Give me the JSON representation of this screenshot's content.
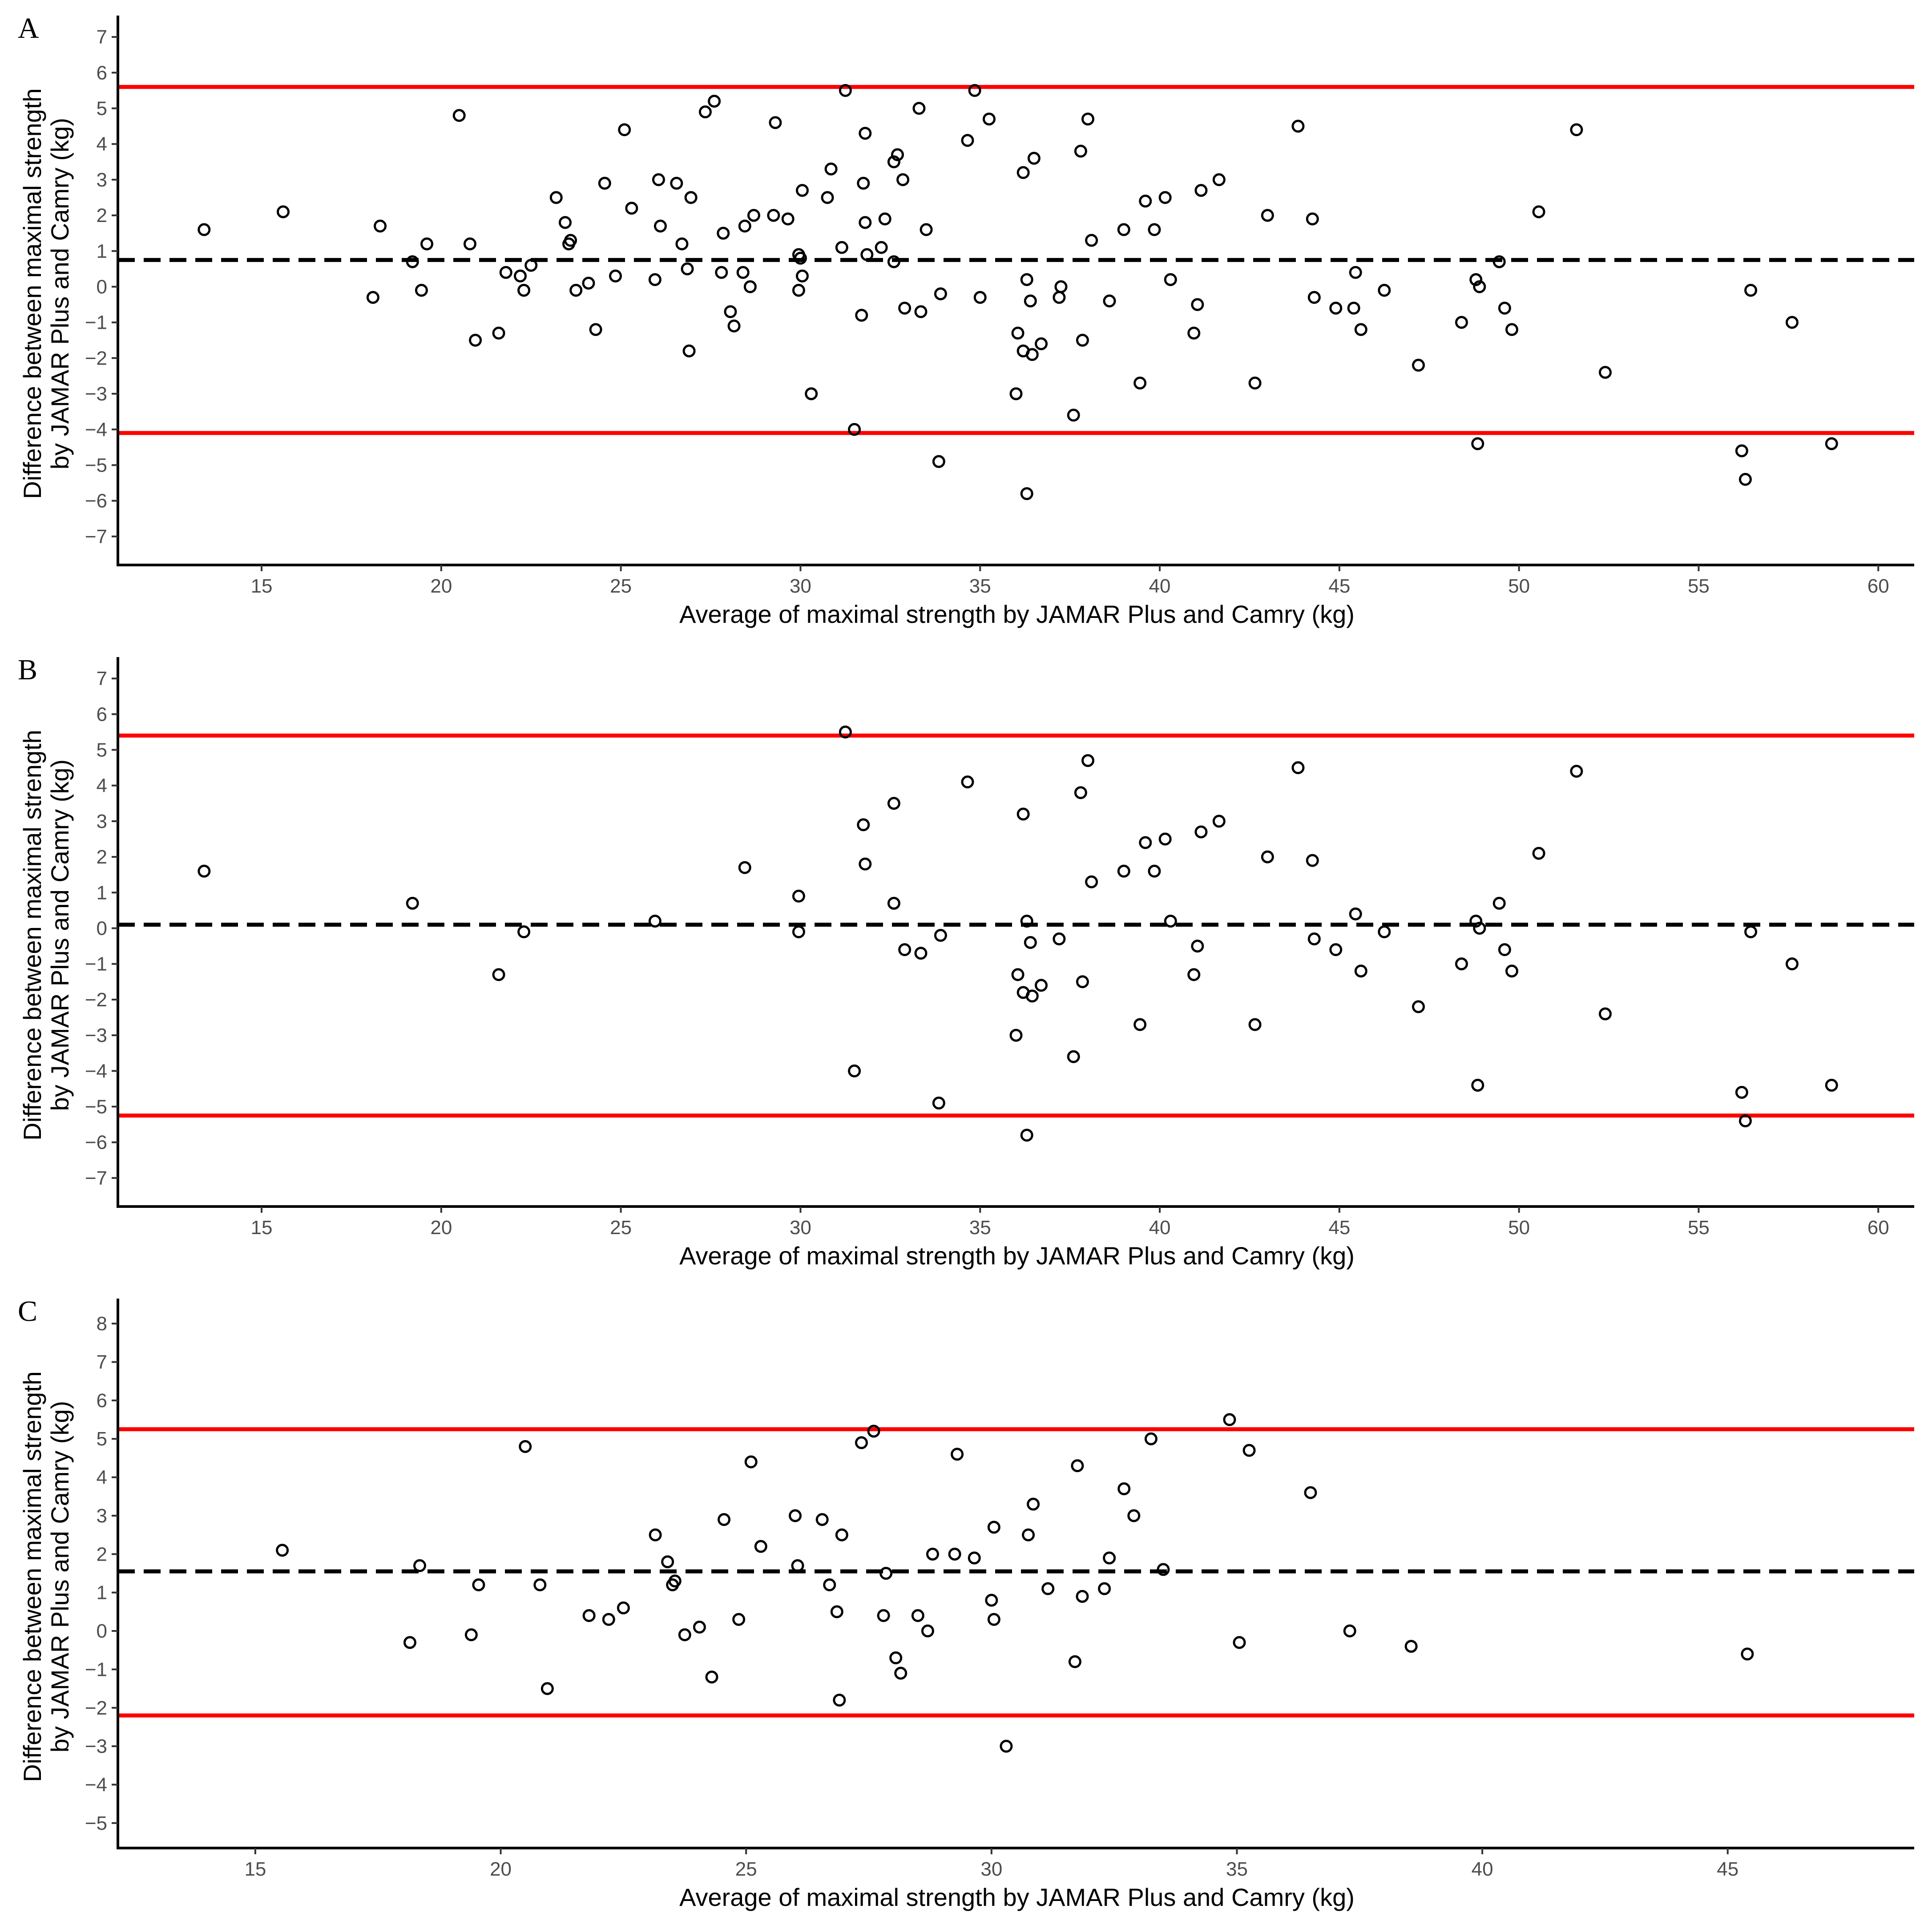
{
  "figure": {
    "colors": {
      "limit_line": "#ff0000",
      "mean_line": "#000000",
      "point_stroke": "#000000",
      "axis": "#000000",
      "tick_label": "#4d4d4d"
    }
  },
  "chart_data": [
    {
      "type": "scatter",
      "panel_label": "A",
      "title": "",
      "xlabel": "Average of maximal strength by JAMAR Plus and Camry (kg)",
      "ylabel_line1": "Difference between maximal strength",
      "ylabel_line2": "by JAMAR Plus and Camry (kg)",
      "xlim": [
        11,
        61
      ],
      "ylim": [
        -7.8,
        7.6
      ],
      "xticks": [
        15,
        20,
        25,
        30,
        35,
        40,
        45,
        50,
        55,
        60
      ],
      "yticks": [
        -7,
        -6,
        -5,
        -4,
        -3,
        -2,
        -1,
        0,
        1,
        2,
        3,
        4,
        5,
        6,
        7
      ],
      "grid": false,
      "legend": "none",
      "reference_lines": {
        "mean": 0.75,
        "upper_loa": 5.6,
        "lower_loa": -4.1
      },
      "points": [
        [
          13.4,
          1.6
        ],
        [
          15.6,
          2.1
        ],
        [
          18.1,
          -0.3
        ],
        [
          18.3,
          1.7
        ],
        [
          19.2,
          0.7
        ],
        [
          19.45,
          -0.1
        ],
        [
          19.6,
          1.2
        ],
        [
          20.5,
          4.8
        ],
        [
          20.8,
          1.2
        ],
        [
          20.95,
          -1.5
        ],
        [
          21.6,
          -1.3
        ],
        [
          21.8,
          0.4
        ],
        [
          22.2,
          0.3
        ],
        [
          22.3,
          -0.1
        ],
        [
          22.5,
          0.6
        ],
        [
          23.2,
          2.5
        ],
        [
          23.45,
          1.8
        ],
        [
          23.55,
          1.2
        ],
        [
          23.6,
          1.3
        ],
        [
          23.75,
          -0.1
        ],
        [
          24.1,
          0.1
        ],
        [
          24.3,
          -1.2
        ],
        [
          24.55,
          2.9
        ],
        [
          24.85,
          0.3
        ],
        [
          25.1,
          4.4
        ],
        [
          25.3,
          2.2
        ],
        [
          25.95,
          0.2
        ],
        [
          26.05,
          3.0
        ],
        [
          26.1,
          1.7
        ],
        [
          26.55,
          2.9
        ],
        [
          26.7,
          1.2
        ],
        [
          26.85,
          0.5
        ],
        [
          26.9,
          -1.8
        ],
        [
          26.95,
          2.5
        ],
        [
          27.35,
          4.9
        ],
        [
          27.6,
          5.2
        ],
        [
          27.8,
          0.4
        ],
        [
          27.85,
          1.5
        ],
        [
          28.05,
          -0.7
        ],
        [
          28.15,
          -1.1
        ],
        [
          28.4,
          0.4
        ],
        [
          28.45,
          1.7
        ],
        [
          28.6,
          0.0
        ],
        [
          28.7,
          2.0
        ],
        [
          29.25,
          2.0
        ],
        [
          29.3,
          4.6
        ],
        [
          29.65,
          1.9
        ],
        [
          29.95,
          0.9
        ],
        [
          29.95,
          -0.1
        ],
        [
          30.0,
          0.8
        ],
        [
          30.05,
          2.7
        ],
        [
          30.05,
          0.3
        ],
        [
          30.3,
          -3.0
        ],
        [
          30.75,
          2.5
        ],
        [
          30.85,
          3.3
        ],
        [
          31.15,
          1.1
        ],
        [
          31.25,
          5.5
        ],
        [
          31.5,
          -4.0
        ],
        [
          31.7,
          -0.8
        ],
        [
          31.75,
          2.9
        ],
        [
          31.8,
          4.3
        ],
        [
          31.8,
          1.8
        ],
        [
          31.85,
          0.9
        ],
        [
          32.25,
          1.1
        ],
        [
          32.35,
          1.9
        ],
        [
          32.6,
          0.7
        ],
        [
          32.6,
          3.5
        ],
        [
          32.7,
          3.7
        ],
        [
          32.85,
          3.0
        ],
        [
          32.9,
          -0.6
        ],
        [
          33.3,
          5.0
        ],
        [
          33.35,
          -0.7
        ],
        [
          33.5,
          1.6
        ],
        [
          33.85,
          -4.9
        ],
        [
          33.9,
          -0.2
        ],
        [
          34.65,
          4.1
        ],
        [
          34.85,
          5.5
        ],
        [
          35.0,
          -0.3
        ],
        [
          35.25,
          4.7
        ],
        [
          36.0,
          -3.0
        ],
        [
          36.05,
          -1.3
        ],
        [
          36.2,
          3.2
        ],
        [
          36.2,
          -1.8
        ],
        [
          36.3,
          -5.8
        ],
        [
          36.3,
          0.2
        ],
        [
          36.4,
          -0.4
        ],
        [
          36.45,
          -1.9
        ],
        [
          36.5,
          3.6
        ],
        [
          36.7,
          -1.6
        ],
        [
          37.2,
          -0.3
        ],
        [
          37.25,
          0.0
        ],
        [
          37.6,
          -3.6
        ],
        [
          37.8,
          3.8
        ],
        [
          37.85,
          -1.5
        ],
        [
          38.0,
          4.7
        ],
        [
          38.1,
          1.3
        ],
        [
          38.6,
          -0.4
        ],
        [
          39.0,
          1.6
        ],
        [
          39.45,
          -2.7
        ],
        [
          39.6,
          2.4
        ],
        [
          39.85,
          1.6
        ],
        [
          40.15,
          2.5
        ],
        [
          40.3,
          0.2
        ],
        [
          40.95,
          -1.3
        ],
        [
          41.05,
          -0.5
        ],
        [
          41.15,
          2.7
        ],
        [
          41.65,
          3.0
        ],
        [
          42.65,
          -2.7
        ],
        [
          43.0,
          2.0
        ],
        [
          43.85,
          4.5
        ],
        [
          44.25,
          1.9
        ],
        [
          44.3,
          -0.3
        ],
        [
          44.9,
          -0.6
        ],
        [
          45.4,
          -0.6
        ],
        [
          45.45,
          0.4
        ],
        [
          45.6,
          -1.2
        ],
        [
          46.25,
          -0.1
        ],
        [
          47.2,
          -2.2
        ],
        [
          48.4,
          -1.0
        ],
        [
          48.8,
          0.2
        ],
        [
          48.85,
          -4.4
        ],
        [
          48.9,
          0.0
        ],
        [
          49.45,
          0.7
        ],
        [
          49.6,
          -0.6
        ],
        [
          49.8,
          -1.2
        ],
        [
          50.55,
          2.1
        ],
        [
          51.6,
          4.4
        ],
        [
          52.4,
          -2.4
        ],
        [
          56.2,
          -4.6
        ],
        [
          56.3,
          -5.4
        ],
        [
          56.45,
          -0.1
        ],
        [
          57.6,
          -1.0
        ],
        [
          58.7,
          -4.4
        ]
      ]
    },
    {
      "type": "scatter",
      "panel_label": "B",
      "title": "",
      "xlabel": "Average of maximal strength by JAMAR Plus and Camry (kg)",
      "ylabel_line1": "Difference between maximal strength",
      "ylabel_line2": "by JAMAR Plus and Camry (kg)",
      "xlim": [
        11,
        61
      ],
      "ylim": [
        -7.8,
        7.6
      ],
      "xticks": [
        15,
        20,
        25,
        30,
        35,
        40,
        45,
        50,
        55,
        60
      ],
      "yticks": [
        -7,
        -6,
        -5,
        -4,
        -3,
        -2,
        -1,
        0,
        1,
        2,
        3,
        4,
        5,
        6,
        7
      ],
      "grid": false,
      "legend": "none",
      "reference_lines": {
        "mean": 0.1,
        "upper_loa": 5.4,
        "lower_loa": -5.25
      },
      "points": [
        [
          13.4,
          1.6
        ],
        [
          19.2,
          0.7
        ],
        [
          21.6,
          -1.3
        ],
        [
          22.3,
          -0.1
        ],
        [
          25.95,
          0.2
        ],
        [
          28.45,
          1.7
        ],
        [
          29.95,
          0.9
        ],
        [
          29.95,
          -0.1
        ],
        [
          31.25,
          5.5
        ],
        [
          31.5,
          -4.0
        ],
        [
          31.75,
          2.9
        ],
        [
          31.8,
          1.8
        ],
        [
          32.6,
          0.7
        ],
        [
          32.6,
          3.5
        ],
        [
          32.9,
          -0.6
        ],
        [
          33.35,
          -0.7
        ],
        [
          33.85,
          -4.9
        ],
        [
          33.9,
          -0.2
        ],
        [
          34.65,
          4.1
        ],
        [
          36.0,
          -3.0
        ],
        [
          36.05,
          -1.3
        ],
        [
          36.2,
          3.2
        ],
        [
          36.2,
          -1.8
        ],
        [
          36.3,
          -5.8
        ],
        [
          36.3,
          0.2
        ],
        [
          36.4,
          -0.4
        ],
        [
          36.45,
          -1.9
        ],
        [
          36.7,
          -1.6
        ],
        [
          37.2,
          -0.3
        ],
        [
          37.6,
          -3.6
        ],
        [
          37.8,
          3.8
        ],
        [
          37.85,
          -1.5
        ],
        [
          38.0,
          4.7
        ],
        [
          38.1,
          1.3
        ],
        [
          39.0,
          1.6
        ],
        [
          39.45,
          -2.7
        ],
        [
          39.6,
          2.4
        ],
        [
          39.85,
          1.6
        ],
        [
          40.15,
          2.5
        ],
        [
          40.3,
          0.2
        ],
        [
          40.95,
          -1.3
        ],
        [
          41.05,
          -0.5
        ],
        [
          41.15,
          2.7
        ],
        [
          41.65,
          3.0
        ],
        [
          42.65,
          -2.7
        ],
        [
          43.0,
          2.0
        ],
        [
          43.85,
          4.5
        ],
        [
          44.25,
          1.9
        ],
        [
          44.3,
          -0.3
        ],
        [
          44.9,
          -0.6
        ],
        [
          45.45,
          0.4
        ],
        [
          45.6,
          -1.2
        ],
        [
          46.25,
          -0.1
        ],
        [
          47.2,
          -2.2
        ],
        [
          48.4,
          -1.0
        ],
        [
          48.8,
          0.2
        ],
        [
          48.85,
          -4.4
        ],
        [
          48.9,
          0.0
        ],
        [
          49.45,
          0.7
        ],
        [
          49.6,
          -0.6
        ],
        [
          49.8,
          -1.2
        ],
        [
          50.55,
          2.1
        ],
        [
          51.6,
          4.4
        ],
        [
          52.4,
          -2.4
        ],
        [
          56.2,
          -4.6
        ],
        [
          56.3,
          -5.4
        ],
        [
          56.45,
          -0.1
        ],
        [
          57.6,
          -1.0
        ],
        [
          58.7,
          -4.4
        ]
      ]
    },
    {
      "type": "scatter",
      "panel_label": "C",
      "title": "",
      "xlabel": "Average of maximal strength by JAMAR Plus and Camry (kg)",
      "ylabel_line1": "Difference between maximal strength",
      "ylabel_line2": "by JAMAR Plus and Camry (kg)",
      "xlim": [
        12.2,
        48.8
      ],
      "ylim": [
        -5.65,
        8.65
      ],
      "xticks": [
        15,
        20,
        25,
        30,
        35,
        40,
        45
      ],
      "yticks": [
        -5,
        -4,
        -3,
        -2,
        -1,
        0,
        1,
        2,
        3,
        4,
        5,
        6,
        7,
        8
      ],
      "grid": false,
      "legend": "none",
      "reference_lines": {
        "mean": 1.55,
        "upper_loa": 5.25,
        "lower_loa": -2.2
      },
      "points": [
        [
          15.55,
          2.1
        ],
        [
          18.15,
          -0.3
        ],
        [
          18.35,
          1.7
        ],
        [
          19.4,
          -0.1
        ],
        [
          19.55,
          1.2
        ],
        [
          20.5,
          4.8
        ],
        [
          20.8,
          1.2
        ],
        [
          20.95,
          -1.5
        ],
        [
          21.8,
          0.4
        ],
        [
          22.2,
          0.3
        ],
        [
          22.5,
          0.6
        ],
        [
          23.15,
          2.5
        ],
        [
          23.4,
          1.8
        ],
        [
          23.5,
          1.2
        ],
        [
          23.55,
          1.3
        ],
        [
          23.75,
          -0.1
        ],
        [
          24.05,
          0.1
        ],
        [
          24.3,
          -1.2
        ],
        [
          24.55,
          2.9
        ],
        [
          24.85,
          0.3
        ],
        [
          25.1,
          4.4
        ],
        [
          25.3,
          2.2
        ],
        [
          26.0,
          3.0
        ],
        [
          26.05,
          1.7
        ],
        [
          26.55,
          2.9
        ],
        [
          26.7,
          1.2
        ],
        [
          26.85,
          0.5
        ],
        [
          26.9,
          -1.8
        ],
        [
          26.95,
          2.5
        ],
        [
          27.35,
          4.9
        ],
        [
          27.6,
          5.2
        ],
        [
          27.8,
          0.4
        ],
        [
          27.85,
          1.5
        ],
        [
          28.05,
          -0.7
        ],
        [
          28.15,
          -1.1
        ],
        [
          28.5,
          0.4
        ],
        [
          28.7,
          0.0
        ],
        [
          28.8,
          2.0
        ],
        [
          29.25,
          2.0
        ],
        [
          29.3,
          4.6
        ],
        [
          29.65,
          1.9
        ],
        [
          30.0,
          0.8
        ],
        [
          30.05,
          2.7
        ],
        [
          30.05,
          0.3
        ],
        [
          30.3,
          -3.0
        ],
        [
          30.75,
          2.5
        ],
        [
          30.85,
          3.3
        ],
        [
          31.15,
          1.1
        ],
        [
          31.7,
          -0.8
        ],
        [
          31.75,
          4.3
        ],
        [
          31.85,
          0.9
        ],
        [
          32.3,
          1.1
        ],
        [
          32.4,
          1.9
        ],
        [
          32.7,
          3.7
        ],
        [
          32.9,
          3.0
        ],
        [
          33.25,
          5.0
        ],
        [
          33.5,
          1.6
        ],
        [
          34.85,
          5.5
        ],
        [
          35.05,
          -0.3
        ],
        [
          35.25,
          4.7
        ],
        [
          36.5,
          3.6
        ],
        [
          37.3,
          0.0
        ],
        [
          38.55,
          -0.4
        ],
        [
          45.4,
          -0.6
        ]
      ]
    }
  ]
}
